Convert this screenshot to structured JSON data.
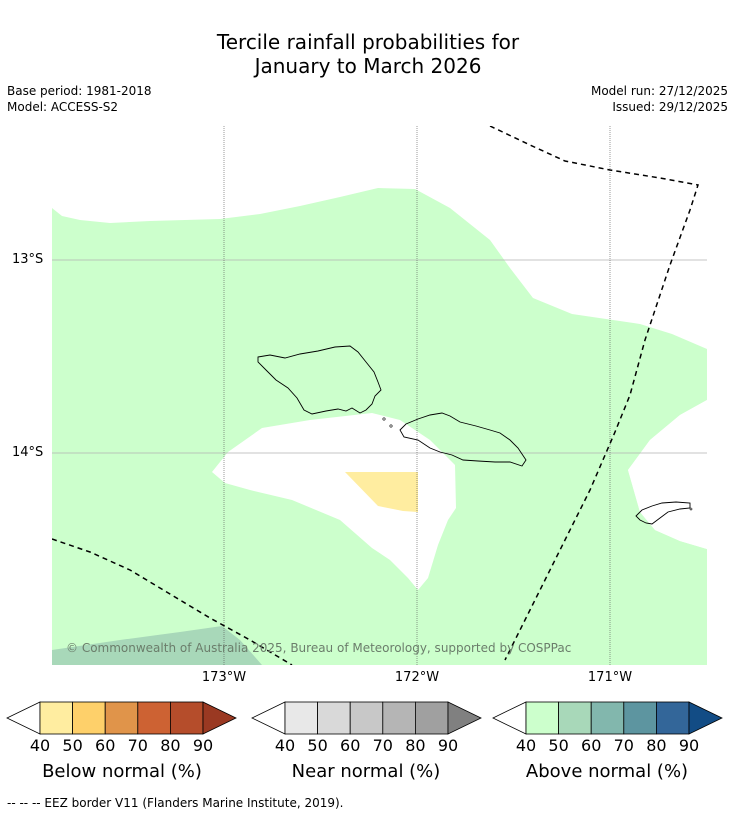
{
  "title_line1": "Tercile rainfall probabilities for",
  "title_line2": "January to March 2026",
  "base_period": "Base period: 1981-2018",
  "model": "Model: ACCESS-S2",
  "model_run": "Model run: 27/12/2025",
  "issued": "Issued: 29/12/2025",
  "map": {
    "lat_labels": [
      "13°S",
      "14°S"
    ],
    "lon_labels": [
      "173°W",
      "172°W",
      "171°W"
    ],
    "copyright": "© Commonwealth of Australia 2025, Bureau of Meteorology, supported by COSPPac",
    "colors": {
      "above_40": "#ccffcc",
      "above_50": "#a8d8b9",
      "below_40": "#ffeda0",
      "no_signal": "#ffffff"
    }
  },
  "colorbars": [
    {
      "title": "Below normal (%)",
      "ticks": [
        "40",
        "50",
        "60",
        "70",
        "80",
        "90"
      ],
      "colors": [
        "#ffeda0",
        "#fed06a",
        "#e0944a",
        "#cd6233",
        "#b54d2b",
        "#9a3922"
      ]
    },
    {
      "title": "Near normal (%)",
      "ticks": [
        "40",
        "50",
        "60",
        "70",
        "80",
        "90"
      ],
      "colors": [
        "#e8e8e8",
        "#d9d9d9",
        "#c8c8c8",
        "#b5b5b5",
        "#a0a0a0",
        "#808080"
      ]
    },
    {
      "title": "Above normal (%)",
      "ticks": [
        "40",
        "50",
        "60",
        "70",
        "80",
        "90"
      ],
      "colors": [
        "#ccffcc",
        "#a8d8b9",
        "#82b7ad",
        "#5d95a0",
        "#336699",
        "#124c85"
      ]
    }
  ],
  "footer": "-- -- -- EEZ border V11 (Flanders Marine Institute, 2019)."
}
